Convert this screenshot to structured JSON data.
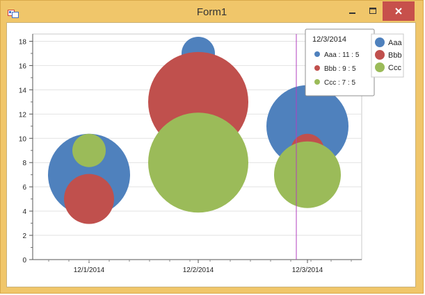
{
  "window": {
    "title": "Form1"
  },
  "chart_data": {
    "type": "bubble",
    "categories": [
      "12/1/2014",
      "12/2/2014",
      "12/3/2014"
    ],
    "ylim": [
      0,
      18.6
    ],
    "yticks": [
      0,
      2,
      4,
      6,
      8,
      10,
      12,
      14,
      16,
      18
    ],
    "grid": true,
    "legend_position": "top-right",
    "series": [
      {
        "name": "Aaa",
        "color": "#4f81bd",
        "values": [
          7,
          17,
          11
        ],
        "sizes": [
          5,
          5,
          5
        ]
      },
      {
        "name": "Bbb",
        "color": "#c0504d",
        "values": [
          5,
          13,
          9
        ],
        "sizes": [
          5,
          5,
          5
        ]
      },
      {
        "name": "Ccc",
        "color": "#9bbb59",
        "values": [
          9,
          8,
          7
        ],
        "sizes": [
          5,
          5,
          5
        ]
      }
    ],
    "crosshair": {
      "x": "12/3/2014"
    },
    "tooltip": {
      "title": "12/3/2014",
      "rows": [
        {
          "label": "Aaa : 11 : 5",
          "color": "#4f81bd"
        },
        {
          "label": "Bbb : 9 : 5",
          "color": "#c0504d"
        },
        {
          "label": "Ccc : 7 : 5",
          "color": "#9bbb59"
        }
      ]
    }
  }
}
